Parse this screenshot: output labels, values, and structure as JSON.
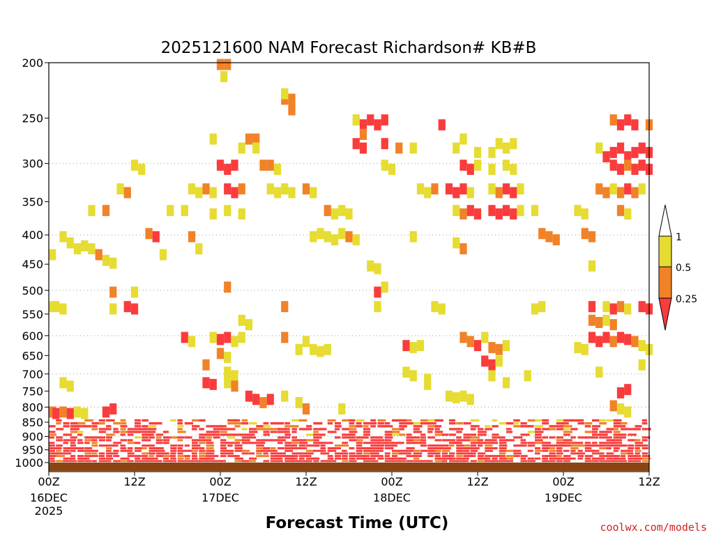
{
  "chart_data": {
    "type": "heatmap",
    "title": "2025121600 NAM Forecast Richardson# KB#B",
    "xlabel": "Forecast Time (UTC)",
    "ylabel": "",
    "credit": "coolwx.com/models",
    "x_unit": "forecast hour",
    "xlim": [
      0,
      84
    ],
    "y_unit": "hPa",
    "ylim": [
      1000,
      200
    ],
    "y_ticks": [
      200,
      250,
      300,
      350,
      400,
      450,
      500,
      550,
      600,
      650,
      700,
      750,
      800,
      850,
      900,
      950,
      1000
    ],
    "y_gridlines": [
      300,
      400,
      500,
      600,
      700,
      800,
      900
    ],
    "x_ticks": [
      {
        "hour": 0,
        "label": "00Z",
        "date": "16DEC",
        "year": "2025"
      },
      {
        "hour": 12,
        "label": "12Z",
        "date": "",
        "year": ""
      },
      {
        "hour": 24,
        "label": "00Z",
        "date": "17DEC",
        "year": ""
      },
      {
        "hour": 36,
        "label": "12Z",
        "date": "",
        "year": ""
      },
      {
        "hour": 48,
        "label": "00Z",
        "date": "18DEC",
        "year": ""
      },
      {
        "hour": 60,
        "label": "12Z",
        "date": "",
        "year": ""
      },
      {
        "hour": 72,
        "label": "00Z",
        "date": "19DEC",
        "year": ""
      },
      {
        "hour": 84,
        "label": "12Z",
        "date": "",
        "year": ""
      }
    ],
    "legend": {
      "placement": "right",
      "bins": [
        {
          "label": "1",
          "color": "#ffffff",
          "range": "> 1"
        },
        {
          "label": "0.5",
          "color": "#e6dc32",
          "range": "0.5 - 1"
        },
        {
          "label": "0.25",
          "color": "#f08228",
          "range": "0.25 - 0.5"
        },
        {
          "label": "",
          "color": "#fa3c3c",
          "range": "< 0.25"
        }
      ],
      "labels": [
        "1",
        "0.5",
        "0.25"
      ]
    },
    "colors": {
      "low": "#fa3c3c",
      "mid": "#f08228",
      "high": "#e6dc32",
      "ground": "#8b4513"
    },
    "cells": [
      [
        24,
        200,
        "mid"
      ],
      [
        25,
        200,
        "mid"
      ],
      [
        24.5,
        210,
        "high"
      ],
      [
        33,
        230,
        "mid"
      ],
      [
        34,
        230,
        "mid"
      ],
      [
        33,
        225,
        "high"
      ],
      [
        34,
        240,
        "mid"
      ],
      [
        43,
        250,
        "high"
      ],
      [
        44,
        255,
        "low"
      ],
      [
        45,
        250,
        "low"
      ],
      [
        46,
        255,
        "low"
      ],
      [
        47,
        250,
        "low"
      ],
      [
        44,
        265,
        "mid"
      ],
      [
        55,
        255,
        "low"
      ],
      [
        84,
        255,
        "mid"
      ],
      [
        79,
        250,
        "mid"
      ],
      [
        80,
        255,
        "low"
      ],
      [
        81,
        250,
        "low"
      ],
      [
        82,
        255,
        "low"
      ],
      [
        28,
        270,
        "mid"
      ],
      [
        29,
        270,
        "mid"
      ],
      [
        27,
        280,
        "high"
      ],
      [
        29,
        280,
        "high"
      ],
      [
        23,
        270,
        "high"
      ],
      [
        43,
        275,
        "low"
      ],
      [
        44,
        280,
        "low"
      ],
      [
        47,
        275,
        "low"
      ],
      [
        49,
        280,
        "mid"
      ],
      [
        51,
        280,
        "high"
      ],
      [
        57,
        280,
        "high"
      ],
      [
        58,
        270,
        "high"
      ],
      [
        60,
        285,
        "high"
      ],
      [
        62,
        285,
        "high"
      ],
      [
        63,
        275,
        "high"
      ],
      [
        64,
        280,
        "high"
      ],
      [
        65,
        275,
        "high"
      ],
      [
        77,
        280,
        "high"
      ],
      [
        78,
        290,
        "low"
      ],
      [
        79,
        285,
        "low"
      ],
      [
        80,
        280,
        "low"
      ],
      [
        81,
        290,
        "low"
      ],
      [
        82,
        285,
        "low"
      ],
      [
        83,
        280,
        "low"
      ],
      [
        84,
        285,
        "low"
      ],
      [
        24,
        300,
        "low"
      ],
      [
        25,
        305,
        "low"
      ],
      [
        26,
        300,
        "low"
      ],
      [
        30,
        300,
        "mid"
      ],
      [
        31,
        300,
        "mid"
      ],
      [
        32,
        305,
        "high"
      ],
      [
        58,
        300,
        "low"
      ],
      [
        59,
        305,
        "low"
      ],
      [
        60,
        300,
        "high"
      ],
      [
        62,
        305,
        "high"
      ],
      [
        64,
        300,
        "high"
      ],
      [
        65,
        305,
        "high"
      ],
      [
        79,
        300,
        "low"
      ],
      [
        80,
        305,
        "low"
      ],
      [
        81,
        300,
        "mid"
      ],
      [
        82,
        305,
        "low"
      ],
      [
        83,
        300,
        "low"
      ],
      [
        84,
        305,
        "low"
      ],
      [
        12,
        300,
        "high"
      ],
      [
        13,
        305,
        "high"
      ],
      [
        47,
        300,
        "high"
      ],
      [
        48,
        305,
        "high"
      ],
      [
        10,
        330,
        "high"
      ],
      [
        11,
        335,
        "mid"
      ],
      [
        20,
        330,
        "high"
      ],
      [
        21,
        335,
        "high"
      ],
      [
        22,
        330,
        "mid"
      ],
      [
        23,
        335,
        "high"
      ],
      [
        25,
        330,
        "low"
      ],
      [
        26,
        335,
        "low"
      ],
      [
        27,
        330,
        "mid"
      ],
      [
        31,
        330,
        "high"
      ],
      [
        32,
        335,
        "high"
      ],
      [
        33,
        330,
        "high"
      ],
      [
        34,
        335,
        "high"
      ],
      [
        36,
        330,
        "mid"
      ],
      [
        37,
        335,
        "high"
      ],
      [
        52,
        330,
        "high"
      ],
      [
        53,
        335,
        "high"
      ],
      [
        54,
        330,
        "mid"
      ],
      [
        56,
        330,
        "low"
      ],
      [
        57,
        335,
        "low"
      ],
      [
        58,
        330,
        "low"
      ],
      [
        59,
        335,
        "high"
      ],
      [
        62,
        330,
        "high"
      ],
      [
        63,
        335,
        "mid"
      ],
      [
        64,
        330,
        "low"
      ],
      [
        65,
        335,
        "low"
      ],
      [
        66,
        330,
        "high"
      ],
      [
        77,
        330,
        "mid"
      ],
      [
        78,
        335,
        "mid"
      ],
      [
        79,
        330,
        "high"
      ],
      [
        80,
        335,
        "mid"
      ],
      [
        81,
        330,
        "low"
      ],
      [
        82,
        335,
        "mid"
      ],
      [
        83,
        330,
        "high"
      ],
      [
        6,
        360,
        "high"
      ],
      [
        8,
        360,
        "mid"
      ],
      [
        17,
        360,
        "high"
      ],
      [
        19,
        360,
        "high"
      ],
      [
        23,
        365,
        "high"
      ],
      [
        25,
        360,
        "high"
      ],
      [
        27,
        365,
        "high"
      ],
      [
        39,
        360,
        "mid"
      ],
      [
        40,
        365,
        "high"
      ],
      [
        41,
        360,
        "high"
      ],
      [
        42,
        365,
        "high"
      ],
      [
        57,
        360,
        "high"
      ],
      [
        58,
        365,
        "mid"
      ],
      [
        59,
        360,
        "low"
      ],
      [
        60,
        365,
        "low"
      ],
      [
        62,
        360,
        "low"
      ],
      [
        63,
        365,
        "low"
      ],
      [
        64,
        360,
        "low"
      ],
      [
        65,
        365,
        "low"
      ],
      [
        66,
        360,
        "high"
      ],
      [
        68,
        360,
        "high"
      ],
      [
        74,
        360,
        "high"
      ],
      [
        75,
        365,
        "high"
      ],
      [
        80,
        360,
        "mid"
      ],
      [
        81,
        365,
        "high"
      ],
      [
        2,
        400,
        "high"
      ],
      [
        3,
        410,
        "high"
      ],
      [
        4,
        420,
        "high"
      ],
      [
        5,
        415,
        "high"
      ],
      [
        6,
        420,
        "high"
      ],
      [
        7,
        430,
        "mid"
      ],
      [
        8,
        440,
        "high"
      ],
      [
        9,
        445,
        "high"
      ],
      [
        14,
        395,
        "mid"
      ],
      [
        15,
        400,
        "low"
      ],
      [
        20,
        400,
        "mid"
      ],
      [
        21,
        420,
        "high"
      ],
      [
        16,
        430,
        "high"
      ],
      [
        37,
        400,
        "high"
      ],
      [
        38,
        395,
        "high"
      ],
      [
        39,
        400,
        "high"
      ],
      [
        40,
        405,
        "high"
      ],
      [
        41,
        395,
        "high"
      ],
      [
        42,
        400,
        "mid"
      ],
      [
        43,
        405,
        "high"
      ],
      [
        51,
        400,
        "high"
      ],
      [
        57,
        410,
        "high"
      ],
      [
        58,
        420,
        "mid"
      ],
      [
        69,
        395,
        "mid"
      ],
      [
        70,
        400,
        "mid"
      ],
      [
        71,
        405,
        "mid"
      ],
      [
        75,
        395,
        "mid"
      ],
      [
        76,
        400,
        "mid"
      ],
      [
        45,
        450,
        "high"
      ],
      [
        46,
        455,
        "high"
      ],
      [
        76,
        450,
        "high"
      ],
      [
        0,
        430,
        "high"
      ],
      [
        9,
        500,
        "mid"
      ],
      [
        12,
        500,
        "high"
      ],
      [
        25,
        490,
        "mid"
      ],
      [
        46,
        500,
        "low"
      ],
      [
        47,
        490,
        "high"
      ],
      [
        0,
        530,
        "high"
      ],
      [
        1,
        530,
        "high"
      ],
      [
        2,
        535,
        "high"
      ],
      [
        9,
        535,
        "high"
      ],
      [
        11,
        530,
        "low"
      ],
      [
        12,
        535,
        "low"
      ],
      [
        33,
        530,
        "mid"
      ],
      [
        46,
        530,
        "high"
      ],
      [
        54,
        530,
        "high"
      ],
      [
        55,
        535,
        "high"
      ],
      [
        68,
        535,
        "high"
      ],
      [
        69,
        530,
        "high"
      ],
      [
        76,
        530,
        "low"
      ],
      [
        78,
        530,
        "high"
      ],
      [
        79,
        535,
        "low"
      ],
      [
        80,
        530,
        "mid"
      ],
      [
        81,
        535,
        "high"
      ],
      [
        83,
        530,
        "low"
      ],
      [
        84,
        535,
        "low"
      ],
      [
        27,
        560,
        "high"
      ],
      [
        28,
        570,
        "high"
      ],
      [
        76,
        560,
        "mid"
      ],
      [
        77,
        565,
        "mid"
      ],
      [
        78,
        560,
        "high"
      ],
      [
        79,
        570,
        "mid"
      ],
      [
        19,
        600,
        "low"
      ],
      [
        20,
        610,
        "high"
      ],
      [
        23,
        600,
        "high"
      ],
      [
        24,
        605,
        "low"
      ],
      [
        25,
        600,
        "low"
      ],
      [
        26,
        610,
        "high"
      ],
      [
        27,
        600,
        "high"
      ],
      [
        33,
        600,
        "mid"
      ],
      [
        36,
        610,
        "high"
      ],
      [
        50,
        620,
        "low"
      ],
      [
        51,
        625,
        "high"
      ],
      [
        52,
        620,
        "high"
      ],
      [
        58,
        600,
        "mid"
      ],
      [
        59,
        610,
        "mid"
      ],
      [
        60,
        620,
        "low"
      ],
      [
        61,
        600,
        "high"
      ],
      [
        62,
        625,
        "mid"
      ],
      [
        63,
        630,
        "mid"
      ],
      [
        64,
        620,
        "high"
      ],
      [
        76,
        600,
        "low"
      ],
      [
        77,
        610,
        "low"
      ],
      [
        78,
        600,
        "low"
      ],
      [
        79,
        610,
        "mid"
      ],
      [
        80,
        600,
        "low"
      ],
      [
        81,
        605,
        "low"
      ],
      [
        82,
        610,
        "mid"
      ],
      [
        83,
        620,
        "high"
      ],
      [
        84,
        630,
        "high"
      ],
      [
        75,
        630,
        "high"
      ],
      [
        74,
        625,
        "high"
      ],
      [
        35,
        630,
        "high"
      ],
      [
        37,
        630,
        "high"
      ],
      [
        38,
        635,
        "high"
      ],
      [
        39,
        630,
        "high"
      ],
      [
        24,
        640,
        "mid"
      ],
      [
        25,
        650,
        "high"
      ],
      [
        61,
        660,
        "low"
      ],
      [
        62,
        670,
        "low"
      ],
      [
        63,
        660,
        "high"
      ],
      [
        83,
        670,
        "high"
      ],
      [
        22,
        670,
        "mid"
      ],
      [
        25,
        690,
        "high"
      ],
      [
        26,
        700,
        "high"
      ],
      [
        50,
        690,
        "high"
      ],
      [
        51,
        700,
        "high"
      ],
      [
        53,
        710,
        "high"
      ],
      [
        62,
        700,
        "high"
      ],
      [
        67,
        700,
        "high"
      ],
      [
        77,
        690,
        "high"
      ],
      [
        2,
        720,
        "high"
      ],
      [
        3,
        730,
        "high"
      ],
      [
        22,
        720,
        "low"
      ],
      [
        23,
        725,
        "low"
      ],
      [
        25,
        720,
        "high"
      ],
      [
        26,
        730,
        "mid"
      ],
      [
        53,
        725,
        "high"
      ],
      [
        64,
        720,
        "high"
      ],
      [
        28,
        760,
        "low"
      ],
      [
        29,
        770,
        "low"
      ],
      [
        30,
        780,
        "mid"
      ],
      [
        31,
        770,
        "low"
      ],
      [
        33,
        760,
        "high"
      ],
      [
        35,
        780,
        "high"
      ],
      [
        56,
        760,
        "high"
      ],
      [
        57,
        765,
        "high"
      ],
      [
        58,
        760,
        "high"
      ],
      [
        59,
        770,
        "high"
      ],
      [
        80,
        750,
        "low"
      ],
      [
        81,
        740,
        "low"
      ],
      [
        0,
        810,
        "mid"
      ],
      [
        1,
        815,
        "low"
      ],
      [
        2,
        810,
        "mid"
      ],
      [
        3,
        815,
        "low"
      ],
      [
        4,
        810,
        "high"
      ],
      [
        5,
        815,
        "high"
      ],
      [
        8,
        810,
        "low"
      ],
      [
        9,
        800,
        "low"
      ],
      [
        36,
        800,
        "mid"
      ],
      [
        41,
        800,
        "high"
      ],
      [
        79,
        790,
        "mid"
      ],
      [
        80,
        800,
        "high"
      ],
      [
        81,
        810,
        "high"
      ]
    ]
  }
}
